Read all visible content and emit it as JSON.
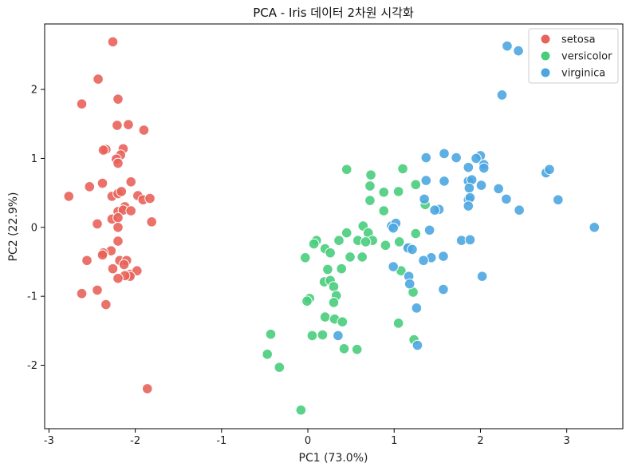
{
  "chart_data": {
    "type": "scatter",
    "title": "PCA - Iris 데이터 2차원 시각화",
    "xlabel": "PC1 (73.0%)",
    "ylabel": "PC2 (22.9%)",
    "xlim": [
      -3.05,
      3.65
    ],
    "ylim": [
      -2.92,
      2.95
    ],
    "xticks": [
      -3,
      -2,
      -1,
      0,
      1,
      2,
      3
    ],
    "yticks": [
      -2,
      -1,
      0,
      1,
      2
    ],
    "legend_position": "top-right",
    "grid": false,
    "series": [
      {
        "name": "setosa",
        "color": "#e8635a",
        "points": [
          [
            -2.26,
            2.69
          ],
          [
            -2.43,
            2.15
          ],
          [
            -2.62,
            1.79
          ],
          [
            -2.2,
            1.86
          ],
          [
            -2.21,
            1.48
          ],
          [
            -2.08,
            1.49
          ],
          [
            -1.9,
            1.41
          ],
          [
            -2.34,
            1.13
          ],
          [
            -2.37,
            1.12
          ],
          [
            -2.14,
            1.14
          ],
          [
            -2.17,
            1.05
          ],
          [
            -2.22,
            0.99
          ],
          [
            -2.2,
            0.93
          ],
          [
            -2.05,
            0.66
          ],
          [
            -2.38,
            0.64
          ],
          [
            -2.53,
            0.59
          ],
          [
            -2.77,
            0.45
          ],
          [
            -2.27,
            0.45
          ],
          [
            -2.2,
            0.49
          ],
          [
            -2.16,
            0.52
          ],
          [
            -1.97,
            0.46
          ],
          [
            -1.91,
            0.4
          ],
          [
            -1.83,
            0.42
          ],
          [
            -2.12,
            0.3
          ],
          [
            -2.2,
            0.23
          ],
          [
            -2.14,
            0.25
          ],
          [
            -2.05,
            0.24
          ],
          [
            -2.27,
            0.12
          ],
          [
            -2.2,
            0.14
          ],
          [
            -2.44,
            0.05
          ],
          [
            -2.2,
            0.0
          ],
          [
            -1.81,
            0.08
          ],
          [
            -2.2,
            -0.2
          ],
          [
            -2.28,
            -0.34
          ],
          [
            -2.37,
            -0.37
          ],
          [
            -2.38,
            -0.4
          ],
          [
            -2.18,
            -0.48
          ],
          [
            -2.1,
            -0.48
          ],
          [
            -2.13,
            -0.54
          ],
          [
            -2.56,
            -0.48
          ],
          [
            -2.26,
            -0.6
          ],
          [
            -2.06,
            -0.68
          ],
          [
            -1.98,
            -0.63
          ],
          [
            -2.06,
            -0.71
          ],
          [
            -2.12,
            -0.7
          ],
          [
            -2.2,
            -0.74
          ],
          [
            -2.44,
            -0.91
          ],
          [
            -2.62,
            -0.96
          ],
          [
            -2.34,
            -1.12
          ],
          [
            -1.86,
            -2.34
          ]
        ]
      },
      {
        "name": "versicolor",
        "color": "#49cd7d",
        "points": [
          [
            0.45,
            0.84
          ],
          [
            0.73,
            0.76
          ],
          [
            1.1,
            0.85
          ],
          [
            0.72,
            0.6
          ],
          [
            0.88,
            0.51
          ],
          [
            1.05,
            0.52
          ],
          [
            1.25,
            0.62
          ],
          [
            0.72,
            0.39
          ],
          [
            1.36,
            0.33
          ],
          [
            0.88,
            0.24
          ],
          [
            0.64,
            0.02
          ],
          [
            0.45,
            -0.08
          ],
          [
            0.7,
            -0.08
          ],
          [
            1.25,
            -0.09
          ],
          [
            0.36,
            -0.19
          ],
          [
            0.58,
            -0.19
          ],
          [
            0.75,
            -0.19
          ],
          [
            0.1,
            -0.19
          ],
          [
            0.07,
            -0.24
          ],
          [
            0.2,
            -0.31
          ],
          [
            0.67,
            -0.21
          ],
          [
            1.06,
            -0.21
          ],
          [
            0.9,
            -0.26
          ],
          [
            0.26,
            -0.37
          ],
          [
            0.49,
            -0.43
          ],
          [
            -0.03,
            -0.44
          ],
          [
            0.63,
            -0.43
          ],
          [
            0.23,
            -0.61
          ],
          [
            0.39,
            -0.6
          ],
          [
            1.08,
            -0.63
          ],
          [
            0.19,
            -0.79
          ],
          [
            0.26,
            -0.77
          ],
          [
            0.3,
            -0.86
          ],
          [
            1.22,
            -0.94
          ],
          [
            0.33,
            -0.99
          ],
          [
            0.3,
            -1.09
          ],
          [
            0.02,
            -1.03
          ],
          [
            -0.01,
            -1.07
          ],
          [
            0.2,
            -1.3
          ],
          [
            1.05,
            -1.39
          ],
          [
            0.31,
            -1.33
          ],
          [
            0.4,
            -1.37
          ],
          [
            0.05,
            -1.57
          ],
          [
            0.17,
            -1.56
          ],
          [
            -0.43,
            -1.55
          ],
          [
            1.23,
            -1.63
          ],
          [
            0.42,
            -1.76
          ],
          [
            0.57,
            -1.77
          ],
          [
            -0.47,
            -1.84
          ],
          [
            -0.33,
            -2.03
          ],
          [
            -0.08,
            -2.65
          ]
        ]
      },
      {
        "name": "virginica",
        "color": "#4da6e0",
        "points": [
          [
            2.31,
            2.63
          ],
          [
            2.44,
            2.56
          ],
          [
            2.25,
            1.92
          ],
          [
            1.58,
            1.07
          ],
          [
            2.0,
            1.04
          ],
          [
            1.72,
            1.01
          ],
          [
            1.37,
            1.01
          ],
          [
            1.95,
            1.0
          ],
          [
            2.04,
            0.91
          ],
          [
            2.04,
            0.86
          ],
          [
            1.86,
            0.87
          ],
          [
            1.86,
            0.67
          ],
          [
            1.9,
            0.69
          ],
          [
            1.58,
            0.67
          ],
          [
            1.37,
            0.68
          ],
          [
            2.76,
            0.79
          ],
          [
            2.8,
            0.84
          ],
          [
            1.87,
            0.57
          ],
          [
            2.21,
            0.56
          ],
          [
            2.01,
            0.61
          ],
          [
            1.86,
            0.4
          ],
          [
            1.88,
            0.43
          ],
          [
            1.35,
            0.41
          ],
          [
            2.3,
            0.41
          ],
          [
            2.9,
            0.4
          ],
          [
            1.86,
            0.31
          ],
          [
            1.52,
            0.26
          ],
          [
            1.47,
            0.25
          ],
          [
            2.45,
            0.25
          ],
          [
            0.97,
            0.02
          ],
          [
            1.02,
            0.06
          ],
          [
            1.41,
            -0.04
          ],
          [
            3.32,
            0.0
          ],
          [
            0.99,
            -0.01
          ],
          [
            1.17,
            -0.29
          ],
          [
            1.16,
            -0.3
          ],
          [
            1.21,
            -0.32
          ],
          [
            1.43,
            -0.44
          ],
          [
            1.57,
            -0.42
          ],
          [
            1.78,
            -0.19
          ],
          [
            1.88,
            -0.18
          ],
          [
            1.34,
            -0.48
          ],
          [
            1.17,
            -0.71
          ],
          [
            0.99,
            -0.57
          ],
          [
            1.18,
            -0.82
          ],
          [
            2.02,
            -0.71
          ],
          [
            1.57,
            -0.9
          ],
          [
            1.26,
            -1.17
          ],
          [
            0.35,
            -1.57
          ],
          [
            1.27,
            -1.71
          ]
        ]
      }
    ]
  }
}
